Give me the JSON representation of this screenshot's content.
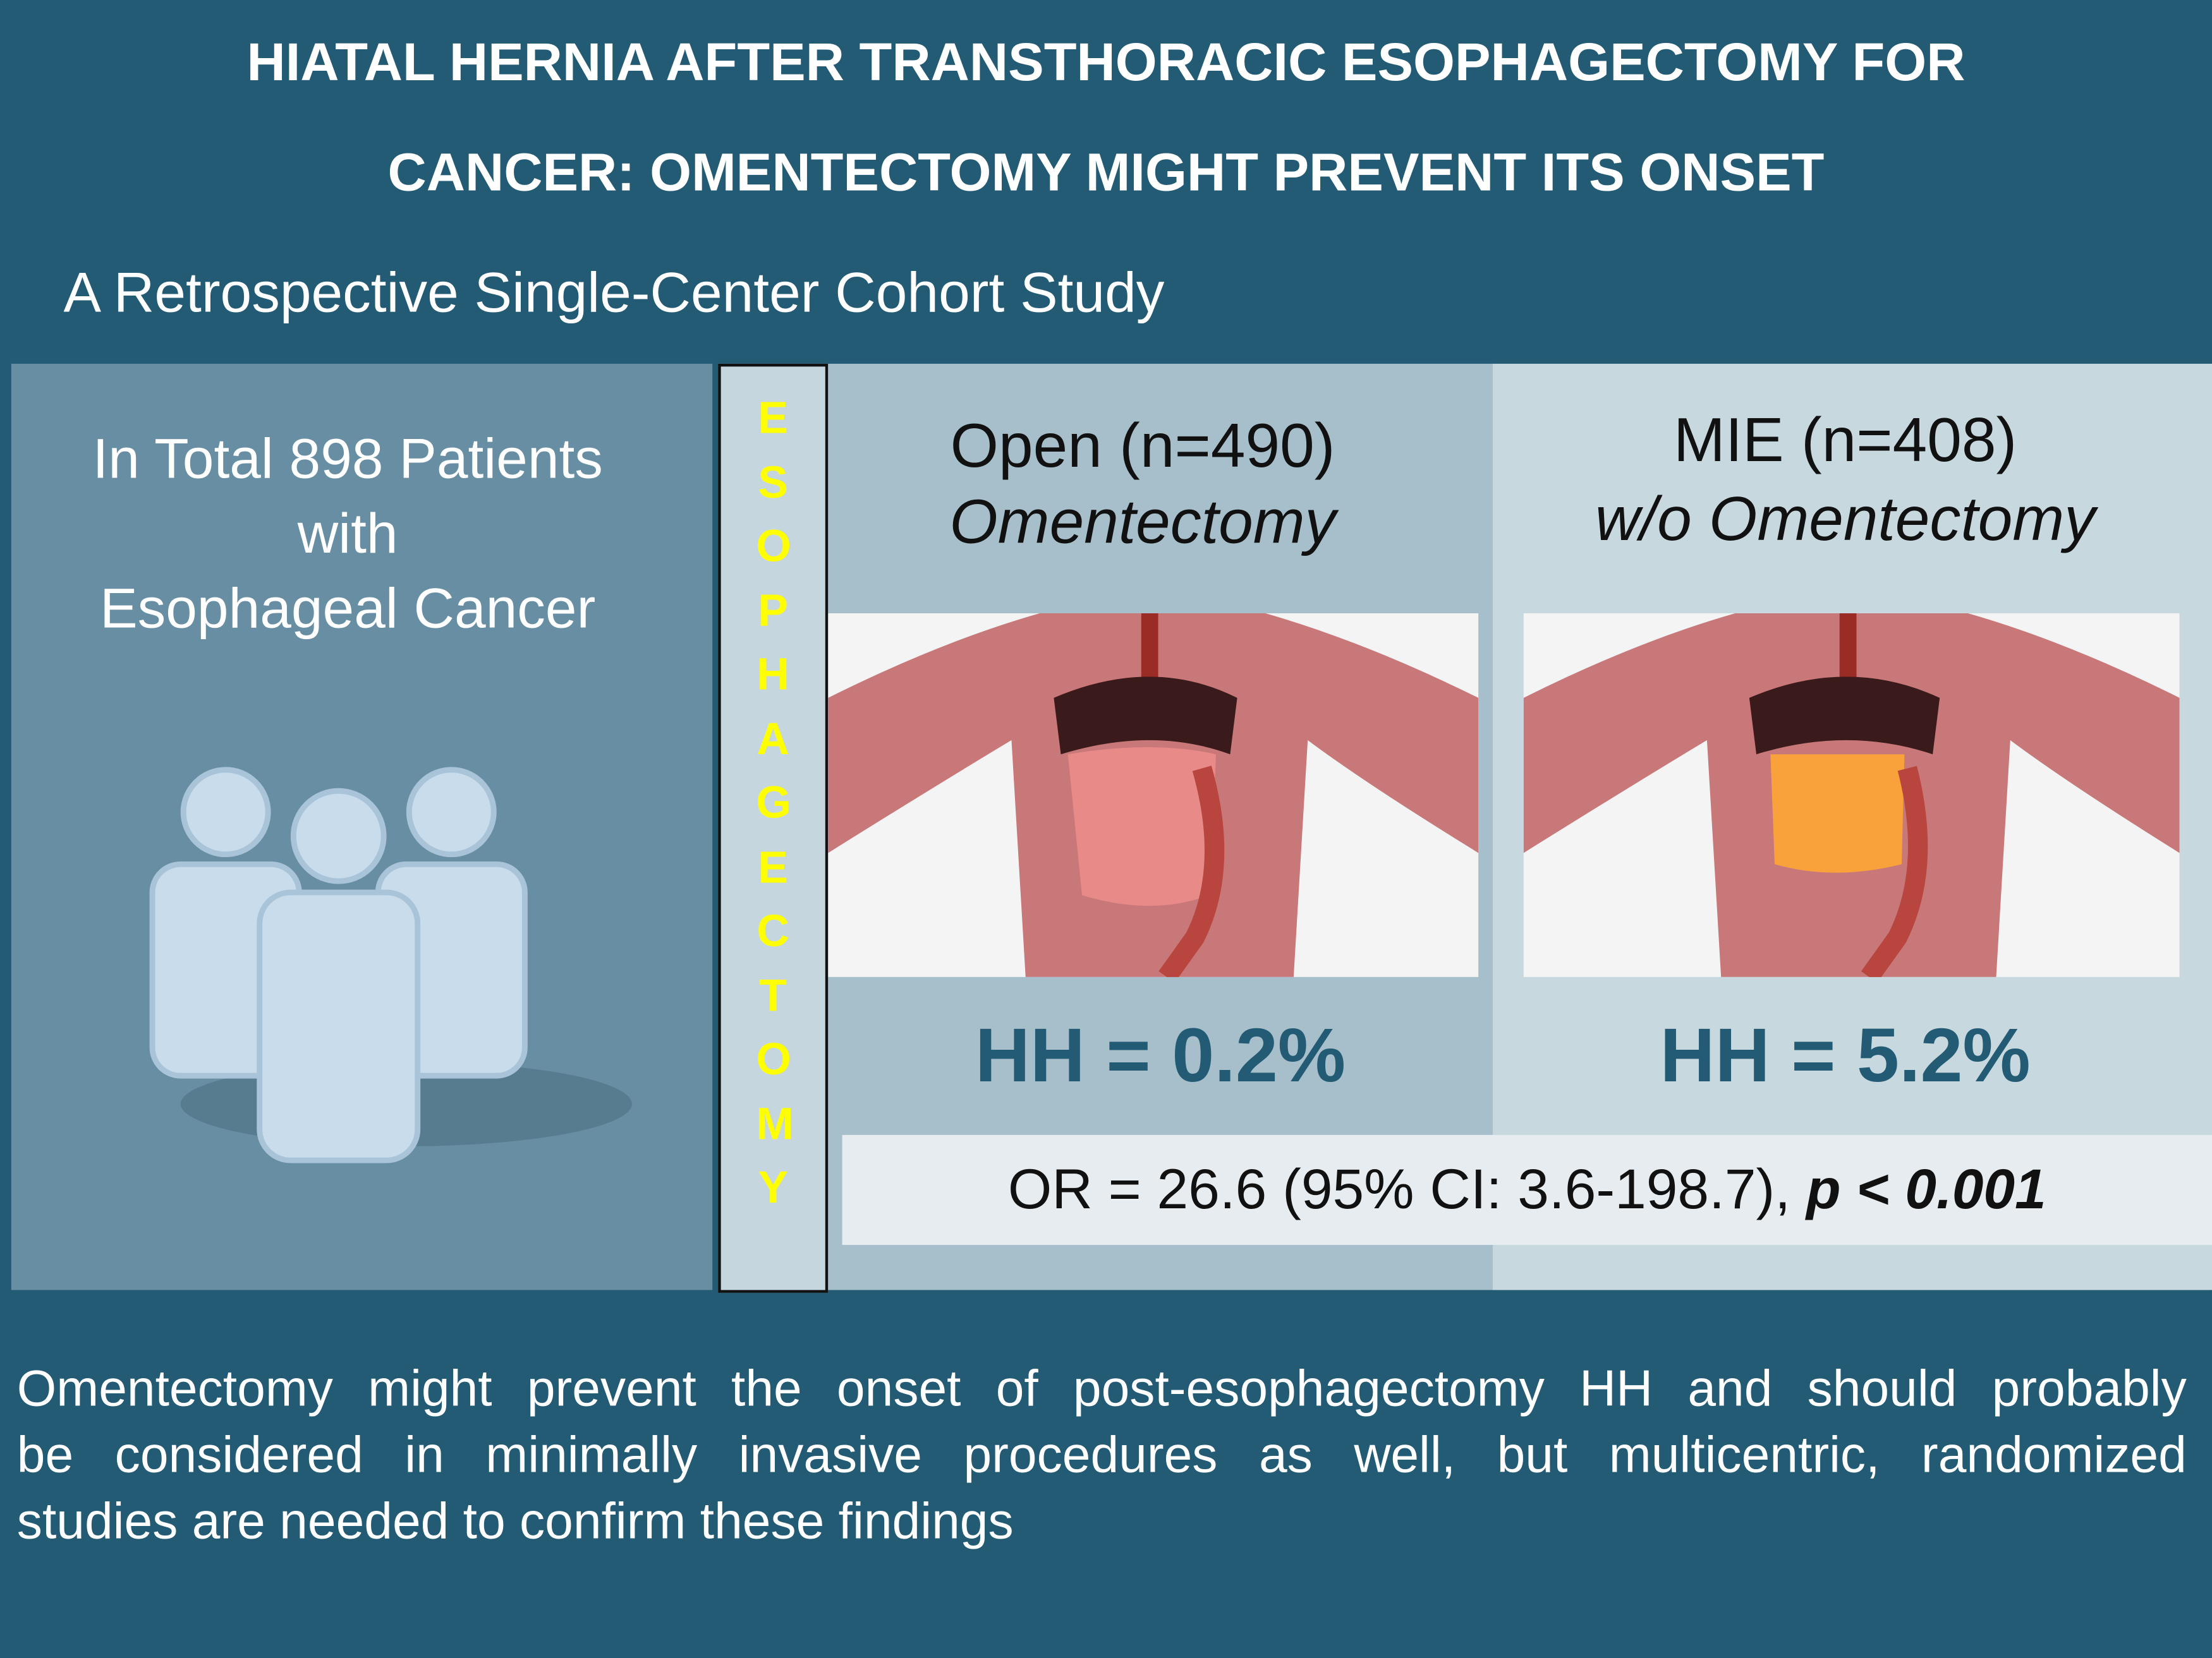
{
  "header": {
    "title_lines": [
      "HIATAL HERNIA AFTER TRANSTHORACIC ESOPHAGECTOMY FOR",
      "CANCER: OMENTECTOMY MIGHT PREVENT ITS ONSET"
    ],
    "subtitle": "A Retrospective Single-Center Cohort Study"
  },
  "population": {
    "lines": [
      "In Total 898 Patients",
      "with",
      "Esophageal Cancer"
    ]
  },
  "procedure_label": "ESOPHAGECTOMY",
  "groups": [
    {
      "name": "Open (n=490)",
      "technique": "Omentectomy",
      "result": "HH = 0.2%"
    },
    {
      "name": "MIE (n=408)",
      "technique": "w/o Omentectomy",
      "result": "HH = 5.2%"
    }
  ],
  "odds_ratio": {
    "text": "OR = 26.6 (95% CI: 3.6-198.7),",
    "p_value": "p < 0.001"
  },
  "conclusion_lines": [
    "Omentectomy might prevent the onset of post-esophagectomy HH and should probably",
    "be considered in minimally invasive procedures as well, but multicentric, randomized",
    "studies are needed to confirm these findings"
  ]
}
